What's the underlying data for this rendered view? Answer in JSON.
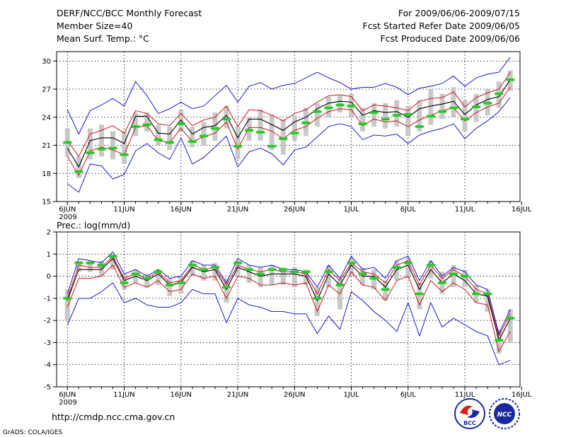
{
  "header": {
    "title": "DERF/NCC/BCC Monthly Forecast",
    "member_size": "Member Size=40",
    "variable": "Mean Surf. Temp.: °C",
    "period": "For 2009/06/06-2009/07/15",
    "start_date": "Fcst Started Refer Date 2009/06/05",
    "produced_date": "Fcst Produced Date 2009/06/06"
  },
  "footer": {
    "url": "http://cmdp.ncc.cma.gov.cn",
    "grads": "GrADS: COLA/IGES",
    "logo_bcc": "BCC",
    "logo_ncc": "NCC"
  },
  "colors": {
    "ensemble_max_min": "#0000cc",
    "ensemble_spread": "#cc0000",
    "ensemble_mean": "#000000",
    "box": "#c8c8c8",
    "median": "#22cc22",
    "grid": "#000000"
  },
  "chart_data": [
    {
      "type": "line",
      "title": "Mean Surf. Temp.: °C",
      "xlabel": "",
      "ylabel": "°C",
      "ylim": [
        15,
        31
      ],
      "yticks": [
        15,
        18,
        21,
        24,
        27,
        30
      ],
      "xtick_labels": [
        "6JUN",
        "11JUN",
        "16JUN",
        "21JUN",
        "26JUN",
        "1JUL",
        "6JUL",
        "11JUL",
        "16JUL"
      ],
      "xtick_days": [
        0,
        5,
        10,
        15,
        20,
        25,
        30,
        35,
        40
      ],
      "xtick_sublabel": "2009",
      "grid": true,
      "x": [
        0,
        1,
        2,
        3,
        4,
        5,
        6,
        7,
        8,
        9,
        10,
        11,
        12,
        13,
        14,
        15,
        16,
        17,
        18,
        19,
        20,
        21,
        22,
        23,
        24,
        25,
        26,
        27,
        28,
        29,
        30,
        31,
        32,
        33,
        34,
        35,
        36,
        37,
        38,
        39
      ],
      "series": [
        {
          "name": "max",
          "values": [
            24.8,
            22.2,
            24.7,
            25.3,
            26.0,
            25.2,
            27.8,
            26.3,
            24.4,
            24.9,
            25.6,
            24.9,
            25.2,
            26.3,
            27.4,
            25.6,
            27.3,
            27.7,
            27.0,
            27.4,
            27.6,
            28.2,
            28.8,
            28.2,
            27.7,
            27.0,
            27.2,
            27.2,
            27.6,
            27.2,
            26.4,
            27.1,
            27.3,
            27.6,
            28.4,
            27.3,
            28.2,
            28.6,
            28.8,
            30.4
          ]
        },
        {
          "name": "upper",
          "values": [
            21.5,
            19.8,
            22.2,
            22.6,
            23.1,
            22.3,
            24.7,
            24.4,
            23.3,
            23.1,
            24.4,
            23.1,
            23.7,
            24.0,
            25.2,
            23.0,
            24.8,
            24.7,
            24.2,
            23.6,
            24.4,
            24.8,
            25.6,
            26.3,
            26.4,
            26.2,
            24.7,
            25.3,
            25.2,
            25.0,
            24.7,
            25.7,
            26.0,
            26.1,
            26.7,
            25.1,
            26.1,
            26.6,
            27.0,
            28.8
          ]
        },
        {
          "name": "mean",
          "values": [
            20.7,
            18.7,
            21.5,
            21.8,
            21.8,
            21.2,
            24.1,
            24.1,
            22.3,
            22.2,
            23.7,
            22.2,
            22.9,
            23.1,
            24.2,
            21.8,
            23.8,
            23.8,
            23.2,
            22.6,
            23.5,
            24.0,
            24.9,
            25.5,
            25.7,
            25.6,
            24.2,
            24.7,
            24.5,
            24.6,
            24.0,
            24.9,
            25.2,
            25.4,
            25.7,
            24.3,
            25.3,
            25.9,
            26.2,
            28.0
          ]
        },
        {
          "name": "lower",
          "values": [
            19.8,
            17.8,
            20.4,
            20.8,
            20.5,
            20.0,
            22.9,
            23.1,
            21.5,
            21.3,
            22.8,
            21.4,
            21.9,
            22.3,
            23.5,
            20.6,
            22.9,
            22.9,
            22.5,
            21.7,
            22.6,
            23.0,
            23.9,
            24.6,
            24.9,
            24.8,
            23.1,
            23.8,
            23.5,
            23.6,
            23.0,
            23.7,
            24.2,
            24.7,
            25.0,
            23.6,
            24.5,
            25.1,
            25.5,
            27.2
          ]
        },
        {
          "name": "min",
          "values": [
            16.9,
            16.0,
            19.0,
            18.8,
            17.4,
            17.9,
            20.4,
            21.2,
            20.2,
            19.5,
            21.8,
            19.0,
            19.7,
            20.8,
            22.0,
            18.7,
            20.3,
            20.7,
            20.1,
            18.9,
            20.5,
            20.8,
            21.9,
            23.0,
            23.3,
            23.0,
            21.6,
            22.1,
            22.0,
            22.2,
            21.2,
            22.1,
            22.5,
            22.8,
            23.3,
            21.7,
            22.8,
            23.6,
            24.6,
            26.1
          ]
        },
        {
          "name": "median",
          "values": [
            21.3,
            18.2,
            20.2,
            20.6,
            20.7,
            20.0,
            23.0,
            23.2,
            21.6,
            21.3,
            23.3,
            21.4,
            22.0,
            22.8,
            23.8,
            20.9,
            22.6,
            22.4,
            20.9,
            21.7,
            22.3,
            23.4,
            24.6,
            25.0,
            25.3,
            25.2,
            23.3,
            24.5,
            23.8,
            24.2,
            24.3,
            23.0,
            24.1,
            24.6,
            25.0,
            23.8,
            25.1,
            25.5,
            26.5,
            28.0
          ]
        }
      ],
      "box_low": [
        19.8,
        17.5,
        19.5,
        19.8,
        19.5,
        19.0,
        22.0,
        22.5,
        21.0,
        20.5,
        22.5,
        20.8,
        21.0,
        21.5,
        22.8,
        19.5,
        21.5,
        21.5,
        20.5,
        20.0,
        21.5,
        22.0,
        23.0,
        24.0,
        24.5,
        24.0,
        22.5,
        23.0,
        22.8,
        23.0,
        22.0,
        22.5,
        23.2,
        23.8,
        24.0,
        22.5,
        23.5,
        24.2,
        25.0,
        26.8
      ],
      "box_high": [
        22.8,
        19.8,
        22.8,
        23.2,
        22.5,
        22.5,
        24.5,
        24.5,
        23.2,
        23.0,
        24.8,
        23.0,
        23.5,
        24.5,
        25.2,
        23.0,
        24.0,
        24.8,
        24.3,
        23.8,
        24.2,
        25.0,
        25.5,
        26.2,
        26.3,
        26.5,
        25.0,
        25.5,
        25.5,
        25.8,
        25.2,
        25.8,
        27.0,
        26.5,
        27.2,
        25.8,
        26.5,
        27.0,
        27.8,
        29.0
      ]
    },
    {
      "type": "line",
      "title": "Prec.: log(mm/d)",
      "xlabel": "",
      "ylabel": "log(mm/d)",
      "ylim": [
        -5,
        2
      ],
      "yticks": [
        -5,
        -4,
        -3,
        -2,
        -1,
        0,
        1,
        2
      ],
      "xtick_labels": [
        "6JUN",
        "11JUN",
        "16JUN",
        "21JUN",
        "26JUN",
        "1JUL",
        "6JUL",
        "11JUL",
        "16JUL"
      ],
      "xtick_days": [
        0,
        5,
        10,
        15,
        20,
        25,
        30,
        35,
        40
      ],
      "xtick_sublabel": "2009",
      "grid": true,
      "x": [
        0,
        1,
        2,
        3,
        4,
        5,
        6,
        7,
        8,
        9,
        10,
        11,
        12,
        13,
        14,
        15,
        16,
        17,
        18,
        19,
        20,
        21,
        22,
        23,
        24,
        25,
        26,
        27,
        28,
        29,
        30,
        31,
        32,
        33,
        34,
        35,
        36,
        37,
        38,
        39
      ],
      "series": [
        {
          "name": "max",
          "values": [
            -0.8,
            0.8,
            0.7,
            0.6,
            1.1,
            0.1,
            0.3,
            0.0,
            0.3,
            -0.1,
            0.0,
            0.7,
            0.5,
            0.5,
            -0.3,
            0.8,
            0.5,
            0.4,
            0.5,
            0.3,
            0.3,
            0.2,
            -0.5,
            0.5,
            -0.1,
            0.9,
            0.3,
            0.4,
            -0.1,
            0.7,
            0.9,
            -0.2,
            0.7,
            0.0,
            0.4,
            0.2,
            -0.4,
            -0.6,
            -2.6,
            -1.5
          ]
        },
        {
          "name": "upper",
          "values": [
            -1.0,
            0.5,
            0.4,
            0.4,
            0.9,
            -0.1,
            0.1,
            -0.1,
            0.2,
            -0.3,
            -0.2,
            0.5,
            0.3,
            0.4,
            -0.4,
            0.5,
            0.3,
            0.2,
            0.3,
            0.2,
            0.2,
            0.1,
            -0.8,
            0.3,
            -0.2,
            0.6,
            0.2,
            0.1,
            -0.3,
            0.5,
            0.7,
            -0.4,
            0.5,
            -0.1,
            0.3,
            0.0,
            -0.6,
            -0.8,
            -2.7,
            -1.7
          ]
        },
        {
          "name": "mean",
          "values": [
            -1.1,
            0.3,
            0.3,
            0.3,
            0.8,
            -0.2,
            0.0,
            -0.2,
            0.1,
            -0.4,
            -0.3,
            0.4,
            0.2,
            0.3,
            -0.6,
            0.4,
            0.2,
            0.0,
            0.1,
            0.1,
            0.1,
            0.0,
            -1.1,
            0.1,
            -0.4,
            0.5,
            0.0,
            0.0,
            -0.5,
            0.3,
            0.5,
            -0.6,
            0.3,
            -0.3,
            0.1,
            -0.2,
            -0.8,
            -0.9,
            -2.9,
            -1.9
          ]
        },
        {
          "name": "lower",
          "values": [
            -1.4,
            -0.1,
            -0.1,
            0.0,
            0.5,
            -0.5,
            -0.3,
            -0.5,
            -0.2,
            -0.7,
            -0.6,
            0.1,
            -0.1,
            0.0,
            -1.0,
            0.0,
            -0.1,
            -0.4,
            -0.4,
            -0.3,
            -0.4,
            -0.3,
            -1.6,
            -0.4,
            -0.8,
            0.2,
            -0.4,
            -0.5,
            -1.1,
            -0.2,
            0.0,
            -1.3,
            -0.2,
            -0.7,
            -0.3,
            -0.6,
            -1.2,
            -1.3,
            -3.4,
            -2.5
          ]
        },
        {
          "name": "min",
          "values": [
            -2.2,
            -1.0,
            -1.0,
            -0.7,
            -0.3,
            -1.2,
            -1.0,
            -1.3,
            -1.4,
            -1.4,
            -1.2,
            -0.6,
            -0.8,
            -0.8,
            -2.1,
            -1.0,
            -1.3,
            -1.4,
            -1.6,
            -1.6,
            -1.7,
            -1.7,
            -2.6,
            -1.8,
            -2.4,
            -0.7,
            -1.1,
            -1.6,
            -2.0,
            -2.5,
            -1.2,
            -2.7,
            -1.2,
            -2.3,
            -1.9,
            -2.2,
            -2.5,
            -2.7,
            -4.0,
            -3.8
          ]
        },
        {
          "name": "median",
          "values": [
            -1.0,
            0.6,
            0.6,
            0.5,
            0.9,
            -0.3,
            0.1,
            -0.1,
            0.2,
            -0.4,
            -0.3,
            0.5,
            0.3,
            0.4,
            -0.5,
            0.6,
            0.3,
            0.1,
            0.3,
            0.3,
            0.2,
            0.2,
            -1.0,
            0.2,
            -0.4,
            0.6,
            0.1,
            -0.1,
            -0.6,
            0.4,
            0.6,
            -0.8,
            0.5,
            -0.3,
            0.1,
            0.0,
            -0.8,
            -0.8,
            -2.9,
            -1.9
          ]
        }
      ],
      "box_low": [
        -2.0,
        0.2,
        0.2,
        0.0,
        0.3,
        -0.6,
        -0.3,
        -0.5,
        -0.4,
        -0.9,
        -0.8,
        0.0,
        -0.2,
        -0.2,
        -1.2,
        0.0,
        -0.3,
        -0.5,
        -0.4,
        -0.4,
        -0.5,
        -0.4,
        -1.8,
        -0.5,
        -1.5,
        0.0,
        -0.4,
        -0.6,
        -1.1,
        -0.2,
        -0.1,
        -1.5,
        -0.1,
        -0.8,
        -0.5,
        -0.5,
        -1.2,
        -1.6,
        -3.5,
        -3.0
      ],
      "box_high": [
        -0.6,
        0.7,
        0.7,
        0.7,
        1.0,
        0.1,
        0.3,
        0.1,
        0.3,
        -0.1,
        0.0,
        0.7,
        0.5,
        0.6,
        -0.1,
        0.7,
        0.5,
        0.4,
        0.5,
        0.4,
        0.4,
        0.3,
        -0.5,
        0.5,
        -0.1,
        0.8,
        0.4,
        0.3,
        -0.2,
        0.7,
        0.8,
        -0.3,
        0.7,
        0.2,
        0.5,
        0.3,
        -0.4,
        -0.6,
        -2.4,
        -1.5
      ]
    }
  ]
}
